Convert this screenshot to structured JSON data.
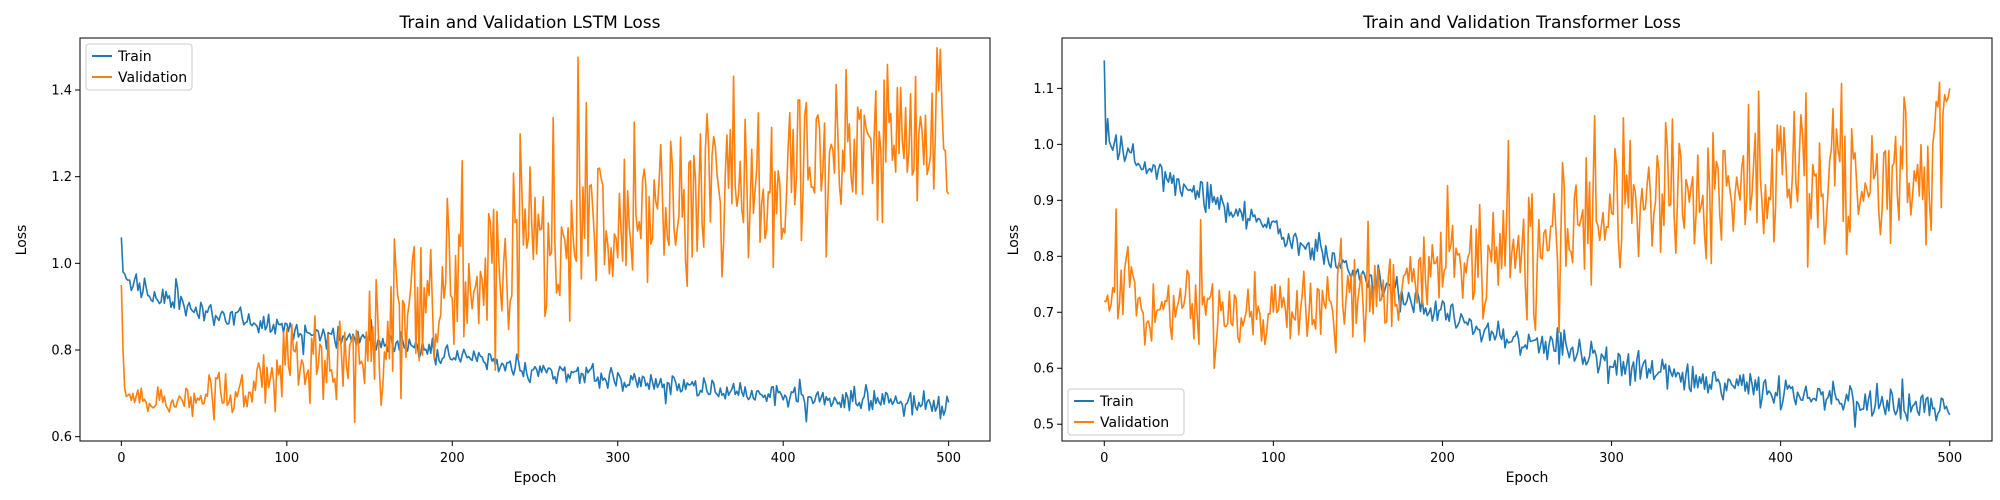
{
  "chart_data": [
    {
      "type": "line",
      "title": "Train and Validation LSTM Loss",
      "xlabel": "Epoch",
      "ylabel": "Loss",
      "xlim": [
        -25,
        525
      ],
      "ylim": [
        0.59,
        1.52
      ],
      "xticks": [
        0,
        100,
        200,
        300,
        400,
        500
      ],
      "yticks": [
        0.6,
        0.8,
        1.0,
        1.2,
        1.4
      ],
      "ytick_format": 1,
      "legend_position": "upper-left",
      "grid": false,
      "series": [
        {
          "name": "Train",
          "color": "#1f77b4",
          "x": [
            0,
            1,
            3,
            5,
            10,
            15,
            20,
            30,
            40,
            50,
            60,
            70,
            80,
            90,
            100,
            110,
            120,
            130,
            140,
            150,
            160,
            170,
            180,
            190,
            200,
            210,
            220,
            230,
            240,
            250,
            260,
            270,
            280,
            290,
            300,
            310,
            320,
            330,
            340,
            350,
            360,
            370,
            380,
            390,
            400,
            410,
            420,
            430,
            440,
            450,
            460,
            470,
            480,
            490,
            495,
            500
          ],
          "y": [
            1.06,
            0.98,
            0.965,
            0.955,
            0.945,
            0.935,
            0.925,
            0.91,
            0.9,
            0.89,
            0.88,
            0.875,
            0.865,
            0.86,
            0.855,
            0.845,
            0.84,
            0.835,
            0.83,
            0.825,
            0.815,
            0.81,
            0.8,
            0.79,
            0.785,
            0.78,
            0.775,
            0.765,
            0.76,
            0.755,
            0.75,
            0.745,
            0.74,
            0.735,
            0.73,
            0.73,
            0.725,
            0.72,
            0.715,
            0.71,
            0.705,
            0.705,
            0.7,
            0.7,
            0.695,
            0.69,
            0.69,
            0.685,
            0.685,
            0.68,
            0.68,
            0.68,
            0.675,
            0.675,
            0.665,
            0.68
          ],
          "noise": 0.012,
          "seed": 11
        },
        {
          "name": "Validation",
          "color": "#ff7f0e",
          "x": [
            0,
            1,
            2,
            3,
            5,
            10,
            20,
            30,
            40,
            50,
            60,
            70,
            80,
            90,
            100,
            110,
            120,
            130,
            140,
            150,
            160,
            170,
            180,
            190,
            200,
            210,
            220,
            230,
            240,
            250,
            260,
            270,
            280,
            290,
            300,
            310,
            320,
            330,
            340,
            350,
            360,
            370,
            380,
            390,
            400,
            410,
            420,
            430,
            440,
            450,
            460,
            470,
            480,
            490,
            495,
            500
          ],
          "y": [
            0.95,
            0.8,
            0.72,
            0.7,
            0.69,
            0.685,
            0.68,
            0.68,
            0.685,
            0.69,
            0.7,
            0.71,
            0.72,
            0.735,
            0.75,
            0.765,
            0.78,
            0.79,
            0.805,
            0.82,
            0.835,
            0.855,
            0.875,
            0.9,
            0.925,
            0.95,
            0.975,
            0.995,
            1.01,
            1.03,
            1.04,
            1.055,
            1.07,
            1.085,
            1.1,
            1.115,
            1.13,
            1.145,
            1.155,
            1.165,
            1.18,
            1.19,
            1.2,
            1.21,
            1.22,
            1.235,
            1.245,
            1.255,
            1.265,
            1.275,
            1.29,
            1.3,
            1.31,
            1.33,
            1.35,
            1.16
          ],
          "noise_scale": [
            0.0,
            0.0,
            0.006,
            0.008,
            0.01,
            0.012,
            0.012,
            0.014,
            0.018,
            0.022,
            0.028,
            0.035,
            0.04,
            0.045,
            0.05,
            0.055,
            0.06,
            0.065,
            0.07,
            0.075,
            0.08,
            0.085,
            0.09,
            0.09,
            0.09,
            0.09,
            0.09,
            0.09,
            0.09,
            0.09,
            0.09,
            0.09,
            0.09,
            0.09,
            0.09,
            0.09,
            0.09,
            0.09,
            0.09,
            0.09,
            0.09,
            0.09,
            0.09,
            0.09,
            0.09,
            0.09,
            0.09,
            0.09,
            0.09,
            0.09,
            0.09,
            0.09,
            0.09,
            0.09,
            0.09,
            0.0
          ],
          "seed": 23
        }
      ]
    },
    {
      "type": "line",
      "title": "Train and Validation Transformer Loss",
      "xlabel": "Epoch",
      "ylabel": "Loss",
      "xlim": [
        -25,
        525
      ],
      "ylim": [
        0.47,
        1.19
      ],
      "xticks": [
        0,
        100,
        200,
        300,
        400,
        500
      ],
      "yticks": [
        0.5,
        0.6,
        0.7,
        0.8,
        0.9,
        1.0,
        1.1
      ],
      "ytick_format": 1,
      "legend_position": "lower-left",
      "grid": false,
      "series": [
        {
          "name": "Train",
          "color": "#1f77b4",
          "x": [
            0,
            1,
            2,
            5,
            10,
            20,
            30,
            40,
            50,
            60,
            70,
            80,
            90,
            100,
            110,
            120,
            130,
            140,
            150,
            160,
            170,
            180,
            190,
            200,
            210,
            220,
            230,
            240,
            250,
            260,
            270,
            280,
            290,
            300,
            310,
            320,
            330,
            340,
            350,
            360,
            370,
            380,
            390,
            400,
            410,
            420,
            430,
            440,
            450,
            460,
            470,
            480,
            490,
            495,
            500
          ],
          "y": [
            1.15,
            1.0,
            1.0,
            0.99,
            0.99,
            0.965,
            0.955,
            0.94,
            0.925,
            0.91,
            0.895,
            0.88,
            0.865,
            0.85,
            0.835,
            0.82,
            0.8,
            0.785,
            0.77,
            0.75,
            0.735,
            0.72,
            0.705,
            0.695,
            0.685,
            0.675,
            0.665,
            0.655,
            0.645,
            0.64,
            0.64,
            0.625,
            0.615,
            0.605,
            0.6,
            0.595,
            0.59,
            0.585,
            0.575,
            0.57,
            0.565,
            0.56,
            0.56,
            0.555,
            0.55,
            0.545,
            0.545,
            0.54,
            0.54,
            0.535,
            0.53,
            0.53,
            0.53,
            0.53,
            0.53
          ],
          "noise": 0.013,
          "seed": 31
        },
        {
          "name": "Validation",
          "color": "#ff7f0e",
          "x": [
            0,
            5,
            10,
            15,
            20,
            25,
            30,
            40,
            50,
            60,
            70,
            80,
            90,
            100,
            110,
            120,
            130,
            140,
            150,
            160,
            170,
            180,
            190,
            200,
            210,
            220,
            230,
            240,
            250,
            260,
            270,
            280,
            290,
            300,
            310,
            320,
            330,
            340,
            350,
            360,
            370,
            380,
            390,
            400,
            410,
            420,
            430,
            440,
            450,
            460,
            470,
            480,
            490,
            495,
            500
          ],
          "y": [
            0.72,
            0.73,
            0.77,
            0.81,
            0.7,
            0.69,
            0.7,
            0.71,
            0.72,
            0.71,
            0.7,
            0.7,
            0.705,
            0.705,
            0.71,
            0.71,
            0.72,
            0.72,
            0.725,
            0.73,
            0.74,
            0.755,
            0.77,
            0.78,
            0.79,
            0.8,
            0.805,
            0.815,
            0.825,
            0.835,
            0.845,
            0.855,
            0.865,
            0.87,
            0.875,
            0.885,
            0.89,
            0.895,
            0.905,
            0.91,
            0.915,
            0.92,
            0.92,
            0.93,
            0.935,
            0.94,
            0.945,
            0.95,
            0.95,
            0.955,
            0.955,
            0.96,
            0.97,
            0.99,
            1.1
          ],
          "noise_scale": [
            0.0,
            0.025,
            0.045,
            0.04,
            0.02,
            0.02,
            0.025,
            0.03,
            0.03,
            0.03,
            0.03,
            0.03,
            0.03,
            0.03,
            0.03,
            0.035,
            0.035,
            0.035,
            0.035,
            0.035,
            0.04,
            0.04,
            0.045,
            0.045,
            0.05,
            0.05,
            0.055,
            0.055,
            0.055,
            0.06,
            0.06,
            0.06,
            0.06,
            0.06,
            0.06,
            0.06,
            0.06,
            0.06,
            0.06,
            0.06,
            0.06,
            0.06,
            0.06,
            0.06,
            0.06,
            0.06,
            0.06,
            0.06,
            0.06,
            0.06,
            0.06,
            0.06,
            0.06,
            0.06,
            0.0
          ],
          "seed": 47
        }
      ]
    }
  ]
}
